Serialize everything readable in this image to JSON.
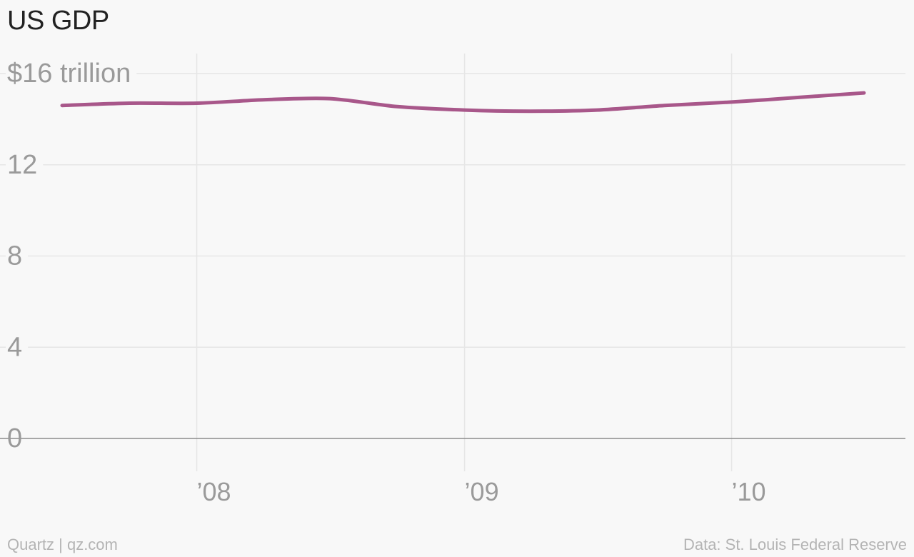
{
  "title": "US GDP",
  "footer": {
    "credit": "Quartz | qz.com",
    "source": "Data: St. Louis Federal Reserve"
  },
  "colors": {
    "line": "#a8578a",
    "grid": "#e6e6e6",
    "baseline": "#8c8c8c",
    "tick_text": "#9a9a9a",
    "title": "#222222",
    "background": "#f8f8f8"
  },
  "chart_data": {
    "type": "line",
    "title": "US GDP",
    "xlabel": "",
    "ylabel": "",
    "x": [
      "2007-07-01",
      "2007-10-01",
      "2008-01-01",
      "2008-04-01",
      "2008-07-01",
      "2008-10-01",
      "2009-01-01",
      "2009-04-01",
      "2009-07-01",
      "2009-10-01",
      "2010-01-01",
      "2010-04-01",
      "2010-07-01"
    ],
    "series": [
      {
        "values": [
          14.6,
          14.7,
          14.7,
          14.85,
          14.9,
          14.55,
          14.4,
          14.35,
          14.4,
          14.6,
          14.75,
          14.95,
          15.15
        ]
      }
    ],
    "xlim": [
      "2007-07-01",
      "2010-10-01"
    ],
    "ylim": [
      0,
      16
    ],
    "y_ticks": [
      0,
      4,
      8,
      12,
      16
    ],
    "y_tick_labels": [
      "0",
      "4",
      "8",
      "12",
      "$16 trillion"
    ],
    "x_ticks": [
      "2008-01-01",
      "2009-01-01",
      "2010-01-01"
    ],
    "x_tick_labels": [
      "’08",
      "’09",
      "’10"
    ],
    "grid": true,
    "legend": "none"
  }
}
